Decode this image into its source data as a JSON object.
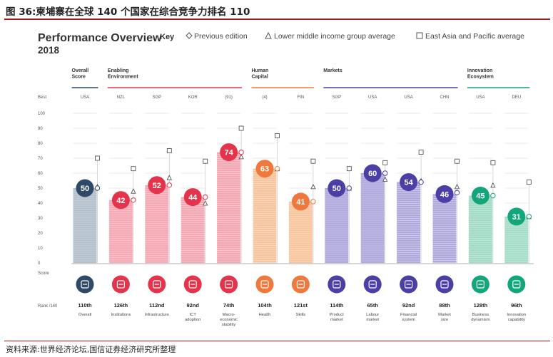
{
  "figure": {
    "title": "图 36:柬埔寨在全球 140 个国家在综合竞争力排名 110",
    "source": "资料来源:世界经济论坛,国信证券经济研究所整理"
  },
  "chart_data": {
    "type": "bar",
    "title": "Performance Overview",
    "subtitle": "2018",
    "key_label": "Key",
    "legend": [
      {
        "symbol": "diamond",
        "label": "Previous edition"
      },
      {
        "symbol": "triangle",
        "label": "Lower middle income group average"
      },
      {
        "symbol": "square",
        "label": "East Asia and Pacific average"
      }
    ],
    "best_label": "Best",
    "score_label": "Score",
    "rank_label": "Rank /140",
    "y_ticks": [
      "100",
      "90",
      "80",
      "70",
      "60",
      "50",
      "40",
      "30",
      "20",
      "10",
      "0"
    ],
    "ylim": [
      0,
      100
    ],
    "groups": [
      {
        "name": "Overall Score",
        "start": 0,
        "end": 0,
        "color": "#2f4a66"
      },
      {
        "name": "Enabling Environment",
        "start": 1,
        "end": 4,
        "color": "#e3344b"
      },
      {
        "name": "Human Capital",
        "start": 5,
        "end": 6,
        "color": "#f0783c"
      },
      {
        "name": "Markets",
        "start": 7,
        "end": 10,
        "color": "#4b3fa6"
      },
      {
        "name": "Innovation Ecosystem",
        "start": 11,
        "end": 12,
        "color": "#13a67a"
      }
    ],
    "pillars": [
      {
        "name": "Overall",
        "best": "USA",
        "value": 50,
        "rank": "110th",
        "previous": 50,
        "lower_middle": 51,
        "east_asia": 70,
        "icon": "medal-icon",
        "color": "#2f4a66",
        "bar_color": "#b4bfcc"
      },
      {
        "name": "Institutions",
        "best": "NZL",
        "value": 42,
        "rank": "126th",
        "previous": 42,
        "lower_middle": 48,
        "east_asia": 63,
        "icon": "institutions-icon",
        "color": "#e3344b",
        "bar_color": "#f6a7b3"
      },
      {
        "name": "Infrastructure",
        "best": "SGP",
        "value": 52,
        "rank": "112nd",
        "previous": 52,
        "lower_middle": 57,
        "east_asia": 75,
        "icon": "infrastructure-icon",
        "color": "#e3344b",
        "bar_color": "#f6a7b3"
      },
      {
        "name": "ICT adoption",
        "best": "KOR",
        "value": 44,
        "rank": "92nd",
        "previous": 44,
        "lower_middle": 40,
        "east_asia": 68,
        "icon": "ict-chip-icon",
        "color": "#e3344b",
        "bar_color": "#f6a7b3"
      },
      {
        "name": "Macro-economic stability",
        "best": "(91)",
        "value": 74,
        "rank": "74th",
        "previous": 74,
        "lower_middle": 71,
        "east_asia": 90,
        "icon": "macro-trend-icon",
        "color": "#e3344b",
        "bar_color": "#f6a7b3"
      },
      {
        "name": "Health",
        "best": "(4)",
        "value": 63,
        "rank": "104th",
        "previous": 63,
        "lower_middle": 63,
        "east_asia": 85,
        "icon": "health-heart-icon",
        "color": "#f0783c",
        "bar_color": "#f8c49c"
      },
      {
        "name": "Skills",
        "best": "FIN",
        "value": 41,
        "rank": "121st",
        "previous": 41,
        "lower_middle": 51,
        "east_asia": 68,
        "icon": "skills-icon",
        "color": "#f0783c",
        "bar_color": "#f8c49c"
      },
      {
        "name": "Product market",
        "best": "SGP",
        "value": 50,
        "rank": "114th",
        "previous": 50,
        "lower_middle": 50,
        "east_asia": 63,
        "icon": "product-tag-icon",
        "color": "#4b3fa6",
        "bar_color": "#b0a9dc"
      },
      {
        "name": "Labour market",
        "best": "USA",
        "value": 60,
        "rank": "65th",
        "previous": 60,
        "lower_middle": 56,
        "east_asia": 67,
        "icon": "labour-people-icon",
        "color": "#4b3fa6",
        "bar_color": "#b0a9dc"
      },
      {
        "name": "Financial system",
        "best": "USA",
        "value": 54,
        "rank": "92nd",
        "previous": 54,
        "lower_middle": 55,
        "east_asia": 74,
        "icon": "financial-card-icon",
        "color": "#4b3fa6",
        "bar_color": "#b0a9dc"
      },
      {
        "name": "Market size",
        "best": "CHN",
        "value": 46,
        "rank": "88th",
        "previous": 47,
        "lower_middle": 51,
        "east_asia": 68,
        "icon": "market-size-icon",
        "color": "#4b3fa6",
        "bar_color": "#b0a9dc"
      },
      {
        "name": "Business dynamism",
        "best": "USA",
        "value": 45,
        "rank": "128th",
        "previous": 45,
        "lower_middle": 52,
        "east_asia": 67,
        "icon": "business-building-icon",
        "color": "#13a67a",
        "bar_color": "#a3dcc6"
      },
      {
        "name": "Innovation capability",
        "best": "DEU",
        "value": 31,
        "rank": "96th",
        "previous": 31,
        "lower_middle": 31,
        "east_asia": 54,
        "icon": "innovation-bulb-icon",
        "color": "#13a67a",
        "bar_color": "#a3dcc6"
      }
    ]
  }
}
